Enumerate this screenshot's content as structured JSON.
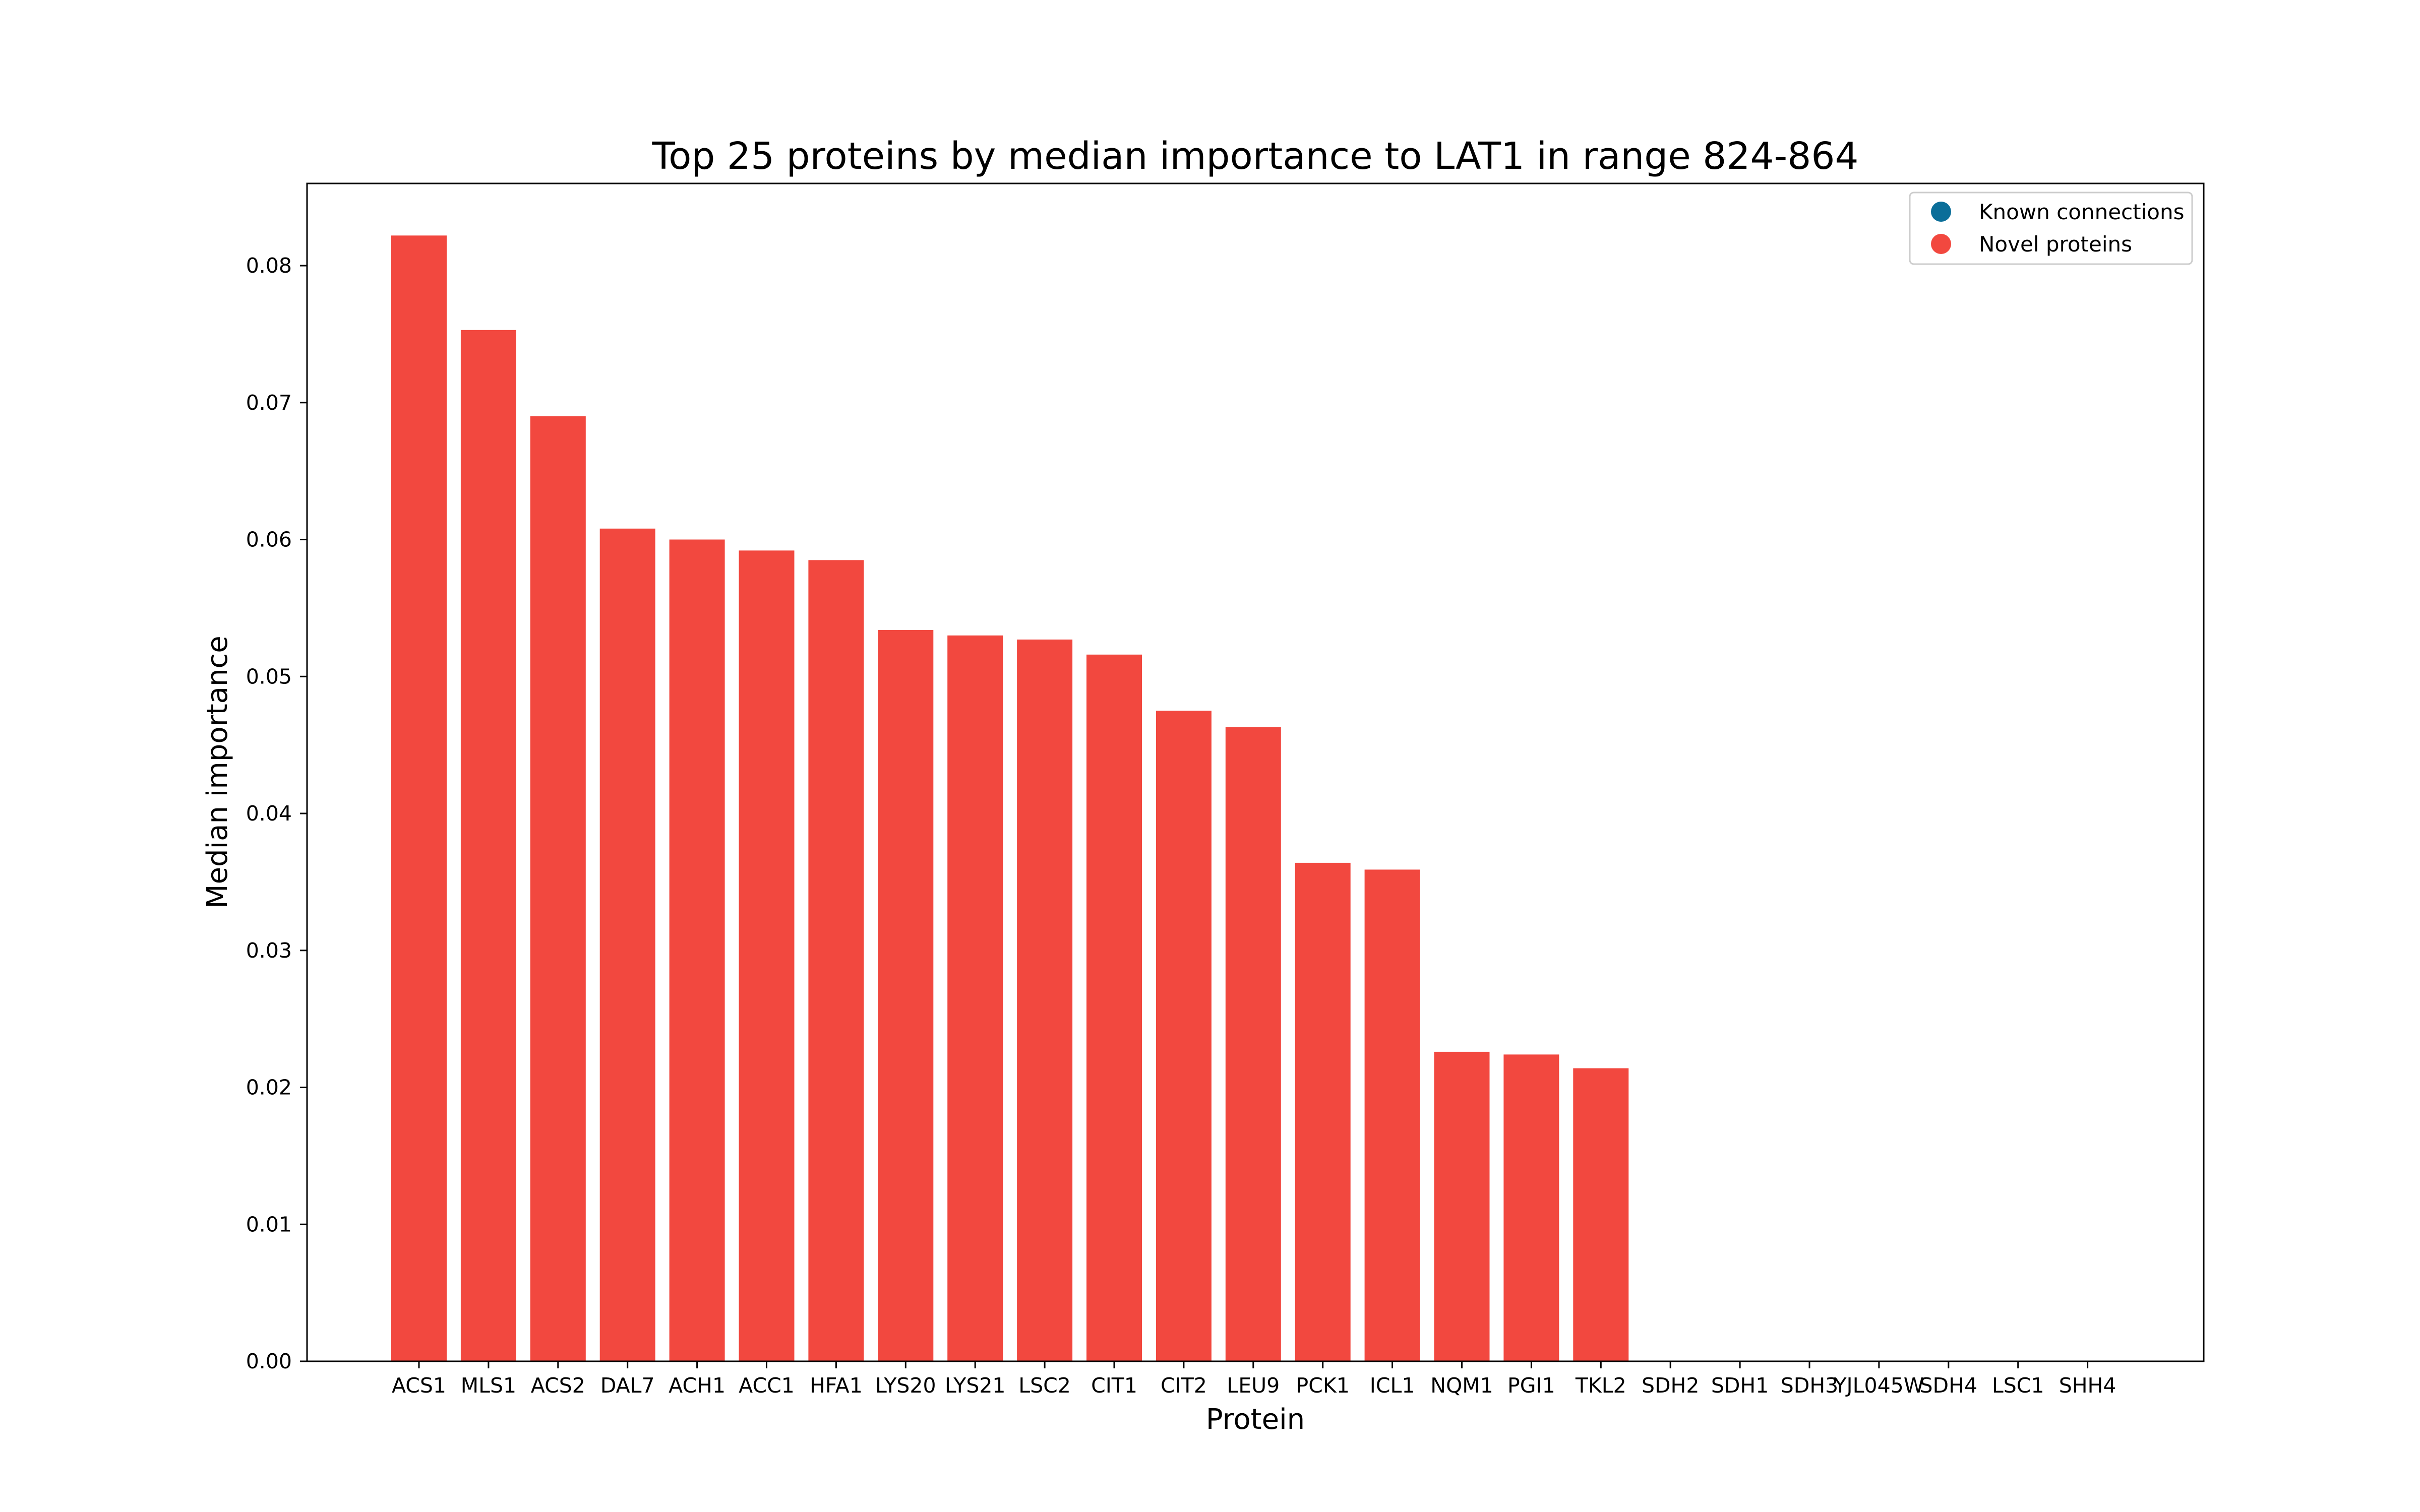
{
  "chart_data": {
    "type": "bar",
    "title": "Top 25 proteins by median importance to LAT1 in range 824-864",
    "xlabel": "Protein",
    "ylabel": "Median importance",
    "ylim": [
      0,
      0.086
    ],
    "yticks": [
      0.0,
      0.01,
      0.02,
      0.03,
      0.04,
      0.05,
      0.06,
      0.07,
      0.08
    ],
    "ytick_labels": [
      "0.00",
      "0.01",
      "0.02",
      "0.03",
      "0.04",
      "0.05",
      "0.06",
      "0.07",
      "0.08"
    ],
    "categories": [
      "ACS1",
      "MLS1",
      "ACS2",
      "DAL7",
      "ACH1",
      "ACC1",
      "HFA1",
      "LYS20",
      "LYS21",
      "LSC2",
      "CIT1",
      "CIT2",
      "LEU9",
      "PCK1",
      "ICL1",
      "NQM1",
      "PGI1",
      "TKL2",
      "SDH2",
      "SDH1",
      "SDH3",
      "YJL045W",
      "SDH4",
      "LSC1",
      "SHH4"
    ],
    "values": [
      0.0822,
      0.0753,
      0.069,
      0.0608,
      0.06,
      0.0592,
      0.0585,
      0.0534,
      0.053,
      0.0527,
      0.0516,
      0.0475,
      0.0463,
      0.0364,
      0.0359,
      0.0226,
      0.0224,
      0.0214,
      0,
      0,
      0,
      0,
      0,
      0,
      0
    ],
    "grid": false,
    "legend": {
      "placement": "top-right",
      "entries": [
        {
          "label": "Known connections",
          "color": "#0b6e99"
        },
        {
          "label": "Novel proteins",
          "color": "#f2483f"
        }
      ]
    },
    "bar_color": "#f2483f"
  }
}
